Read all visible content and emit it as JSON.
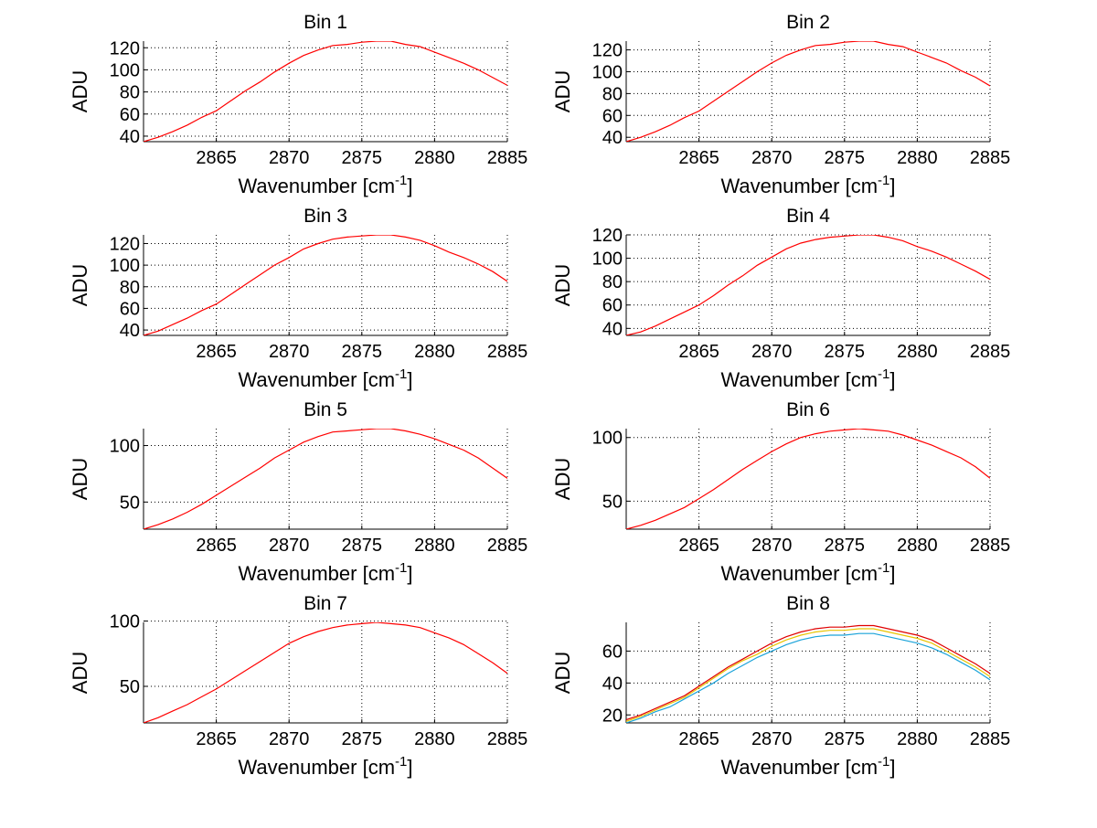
{
  "chart_data": [
    {
      "type": "line",
      "title": "Bin 1",
      "xlabel": "Wavenumber [cm",
      "xlabel_sup": "-1",
      "xlabel_end": "]",
      "ylabel": "ADU",
      "xlim": [
        2860,
        2885
      ],
      "ylim": [
        35,
        126
      ],
      "xticks": [
        2865,
        2870,
        2875,
        2880,
        2885
      ],
      "yticks": [
        40,
        60,
        80,
        100,
        120
      ],
      "grid": true,
      "x": [
        2860,
        2861,
        2862,
        2863,
        2864,
        2865,
        2866,
        2867,
        2868,
        2869,
        2870,
        2871,
        2872,
        2873,
        2874,
        2875,
        2876,
        2877,
        2878,
        2879,
        2880,
        2881,
        2882,
        2883,
        2884,
        2885
      ],
      "series": [
        {
          "name": "red",
          "color": "#ff0000",
          "values": [
            35,
            39,
            44,
            50,
            57,
            63,
            72,
            81,
            89,
            98,
            106,
            113,
            118,
            122,
            123,
            125,
            126,
            126,
            123,
            121,
            116,
            111,
            106,
            100,
            93,
            86
          ]
        }
      ]
    },
    {
      "type": "line",
      "title": "Bin 2",
      "xlabel": "Wavenumber [cm",
      "xlabel_sup": "-1",
      "xlabel_end": "]",
      "ylabel": "ADU",
      "xlim": [
        2860,
        2885
      ],
      "ylim": [
        36,
        128
      ],
      "xticks": [
        2865,
        2870,
        2875,
        2880,
        2885
      ],
      "yticks": [
        40,
        60,
        80,
        100,
        120
      ],
      "grid": true,
      "x": [
        2860,
        2861,
        2862,
        2863,
        2864,
        2865,
        2866,
        2867,
        2868,
        2869,
        2870,
        2871,
        2872,
        2873,
        2874,
        2875,
        2876,
        2877,
        2878,
        2879,
        2880,
        2881,
        2882,
        2883,
        2884,
        2885
      ],
      "series": [
        {
          "name": "red",
          "color": "#ff0000",
          "values": [
            36,
            40,
            45,
            51,
            58,
            64,
            73,
            82,
            91,
            100,
            108,
            115,
            120,
            124,
            125,
            127,
            128,
            128,
            125,
            123,
            118,
            113,
            108,
            101,
            95,
            87
          ]
        }
      ]
    },
    {
      "type": "line",
      "title": "Bin 3",
      "xlabel": "Wavenumber [cm",
      "xlabel_sup": "-1",
      "xlabel_end": "]",
      "ylabel": "ADU",
      "xlim": [
        2860,
        2885
      ],
      "ylim": [
        35,
        128
      ],
      "xticks": [
        2865,
        2870,
        2875,
        2880,
        2885
      ],
      "yticks": [
        40,
        60,
        80,
        100,
        120
      ],
      "grid": true,
      "x": [
        2860,
        2861,
        2862,
        2863,
        2864,
        2865,
        2866,
        2867,
        2868,
        2869,
        2870,
        2871,
        2872,
        2873,
        2874,
        2875,
        2876,
        2877,
        2878,
        2879,
        2880,
        2881,
        2882,
        2883,
        2884,
        2885
      ],
      "series": [
        {
          "name": "red",
          "color": "#ff0000",
          "values": [
            35,
            39,
            45,
            51,
            58,
            64,
            73,
            82,
            91,
            100,
            107,
            115,
            120,
            124,
            126,
            127,
            128,
            128,
            126,
            123,
            118,
            112,
            107,
            101,
            94,
            85
          ]
        }
      ]
    },
    {
      "type": "line",
      "title": "Bin 4",
      "xlabel": "Wavenumber [cm",
      "xlabel_sup": "-1",
      "xlabel_end": "]",
      "ylabel": "ADU",
      "xlim": [
        2860,
        2885
      ],
      "ylim": [
        34,
        120
      ],
      "xticks": [
        2865,
        2870,
        2875,
        2880,
        2885
      ],
      "yticks": [
        40,
        60,
        80,
        100,
        120
      ],
      "grid": true,
      "x": [
        2860,
        2861,
        2862,
        2863,
        2864,
        2865,
        2866,
        2867,
        2868,
        2869,
        2870,
        2871,
        2872,
        2873,
        2874,
        2875,
        2876,
        2877,
        2878,
        2879,
        2880,
        2881,
        2882,
        2883,
        2884,
        2885
      ],
      "series": [
        {
          "name": "red",
          "color": "#ff0000",
          "values": [
            34,
            37,
            42,
            48,
            54,
            60,
            68,
            77,
            85,
            94,
            101,
            108,
            113,
            116,
            118,
            119,
            120,
            120,
            118,
            115,
            110,
            106,
            101,
            95,
            89,
            82
          ]
        }
      ]
    },
    {
      "type": "line",
      "title": "Bin 5",
      "xlabel": "Wavenumber [cm",
      "xlabel_sup": "-1",
      "xlabel_end": "]",
      "ylabel": "ADU",
      "xlim": [
        2860,
        2885
      ],
      "ylim": [
        26,
        115
      ],
      "xticks": [
        2865,
        2870,
        2875,
        2880,
        2885
      ],
      "yticks": [
        50,
        100
      ],
      "grid": true,
      "x": [
        2860,
        2861,
        2862,
        2863,
        2864,
        2865,
        2866,
        2867,
        2868,
        2869,
        2870,
        2871,
        2872,
        2873,
        2874,
        2875,
        2876,
        2877,
        2878,
        2879,
        2880,
        2881,
        2882,
        2883,
        2884,
        2885
      ],
      "series": [
        {
          "name": "red",
          "color": "#ff0000",
          "values": [
            26,
            30,
            35,
            41,
            48,
            56,
            64,
            72,
            80,
            89,
            96,
            103,
            108,
            112,
            113,
            114,
            115,
            115,
            113,
            110,
            106,
            101,
            96,
            89,
            80,
            71
          ]
        }
      ]
    },
    {
      "type": "line",
      "title": "Bin 6",
      "xlabel": "Wavenumber [cm",
      "xlabel_sup": "-1",
      "xlabel_end": "]",
      "ylabel": "ADU",
      "xlim": [
        2860,
        2885
      ],
      "ylim": [
        28,
        107
      ],
      "xticks": [
        2865,
        2870,
        2875,
        2880,
        2885
      ],
      "yticks": [
        50,
        100
      ],
      "grid": true,
      "x": [
        2860,
        2861,
        2862,
        2863,
        2864,
        2865,
        2866,
        2867,
        2868,
        2869,
        2870,
        2871,
        2872,
        2873,
        2874,
        2875,
        2876,
        2877,
        2878,
        2879,
        2880,
        2881,
        2882,
        2883,
        2884,
        2885
      ],
      "series": [
        {
          "name": "red",
          "color": "#ff0000",
          "values": [
            28,
            31,
            35,
            40,
            45,
            52,
            59,
            67,
            75,
            82,
            89,
            95,
            100,
            103,
            105,
            106,
            107,
            106,
            105,
            102,
            98,
            94,
            89,
            84,
            77,
            68
          ]
        }
      ]
    },
    {
      "type": "line",
      "title": "Bin 7",
      "xlabel": "Wavenumber [cm",
      "xlabel_sup": "-1",
      "xlabel_end": "]",
      "ylabel": "ADU",
      "xlim": [
        2860,
        2885
      ],
      "ylim": [
        22,
        99
      ],
      "xticks": [
        2865,
        2870,
        2875,
        2880,
        2885
      ],
      "yticks": [
        50,
        100
      ],
      "grid": true,
      "x": [
        2860,
        2861,
        2862,
        2863,
        2864,
        2865,
        2866,
        2867,
        2868,
        2869,
        2870,
        2871,
        2872,
        2873,
        2874,
        2875,
        2876,
        2877,
        2878,
        2879,
        2880,
        2881,
        2882,
        2883,
        2884,
        2885
      ],
      "series": [
        {
          "name": "red",
          "color": "#ff0000",
          "values": [
            22,
            26,
            31,
            36,
            42,
            48,
            55,
            62,
            69,
            76,
            83,
            88,
            92,
            95,
            97,
            98,
            99,
            98,
            97,
            95,
            91,
            87,
            82,
            75,
            68,
            60
          ]
        }
      ]
    },
    {
      "type": "line",
      "title": "Bin 8",
      "xlabel": "Wavenumber [cm",
      "xlabel_sup": "-1",
      "xlabel_end": "]",
      "ylabel": "ADU",
      "xlim": [
        2860,
        2885
      ],
      "ylim": [
        15,
        78
      ],
      "xticks": [
        2865,
        2870,
        2875,
        2880,
        2885
      ],
      "yticks": [
        20,
        40,
        60
      ],
      "grid": true,
      "x": [
        2860,
        2861,
        2862,
        2863,
        2864,
        2865,
        2866,
        2867,
        2868,
        2869,
        2870,
        2871,
        2872,
        2873,
        2874,
        2875,
        2876,
        2877,
        2878,
        2879,
        2880,
        2881,
        2882,
        2883,
        2884,
        2885
      ],
      "series": [
        {
          "name": "cyan",
          "color": "#1aa3d9",
          "values": [
            15,
            18,
            22,
            25,
            30,
            35,
            40,
            46,
            51,
            56,
            60,
            64,
            67,
            69,
            70,
            70,
            71,
            71,
            69,
            67,
            65,
            62,
            58,
            53,
            48,
            42
          ]
        },
        {
          "name": "yellow",
          "color": "#e8c400",
          "values": [
            16,
            19,
            23,
            27,
            31,
            37,
            43,
            49,
            54,
            58,
            63,
            67,
            70,
            72,
            73,
            73,
            74,
            74,
            72,
            70,
            68,
            65,
            60,
            55,
            50,
            44
          ]
        },
        {
          "name": "red",
          "color": "#e00000",
          "values": [
            17,
            20,
            24,
            28,
            32,
            38,
            44,
            50,
            55,
            60,
            65,
            69,
            72,
            74,
            75,
            75,
            76,
            76,
            74,
            72,
            70,
            67,
            62,
            57,
            52,
            46
          ]
        }
      ]
    }
  ]
}
